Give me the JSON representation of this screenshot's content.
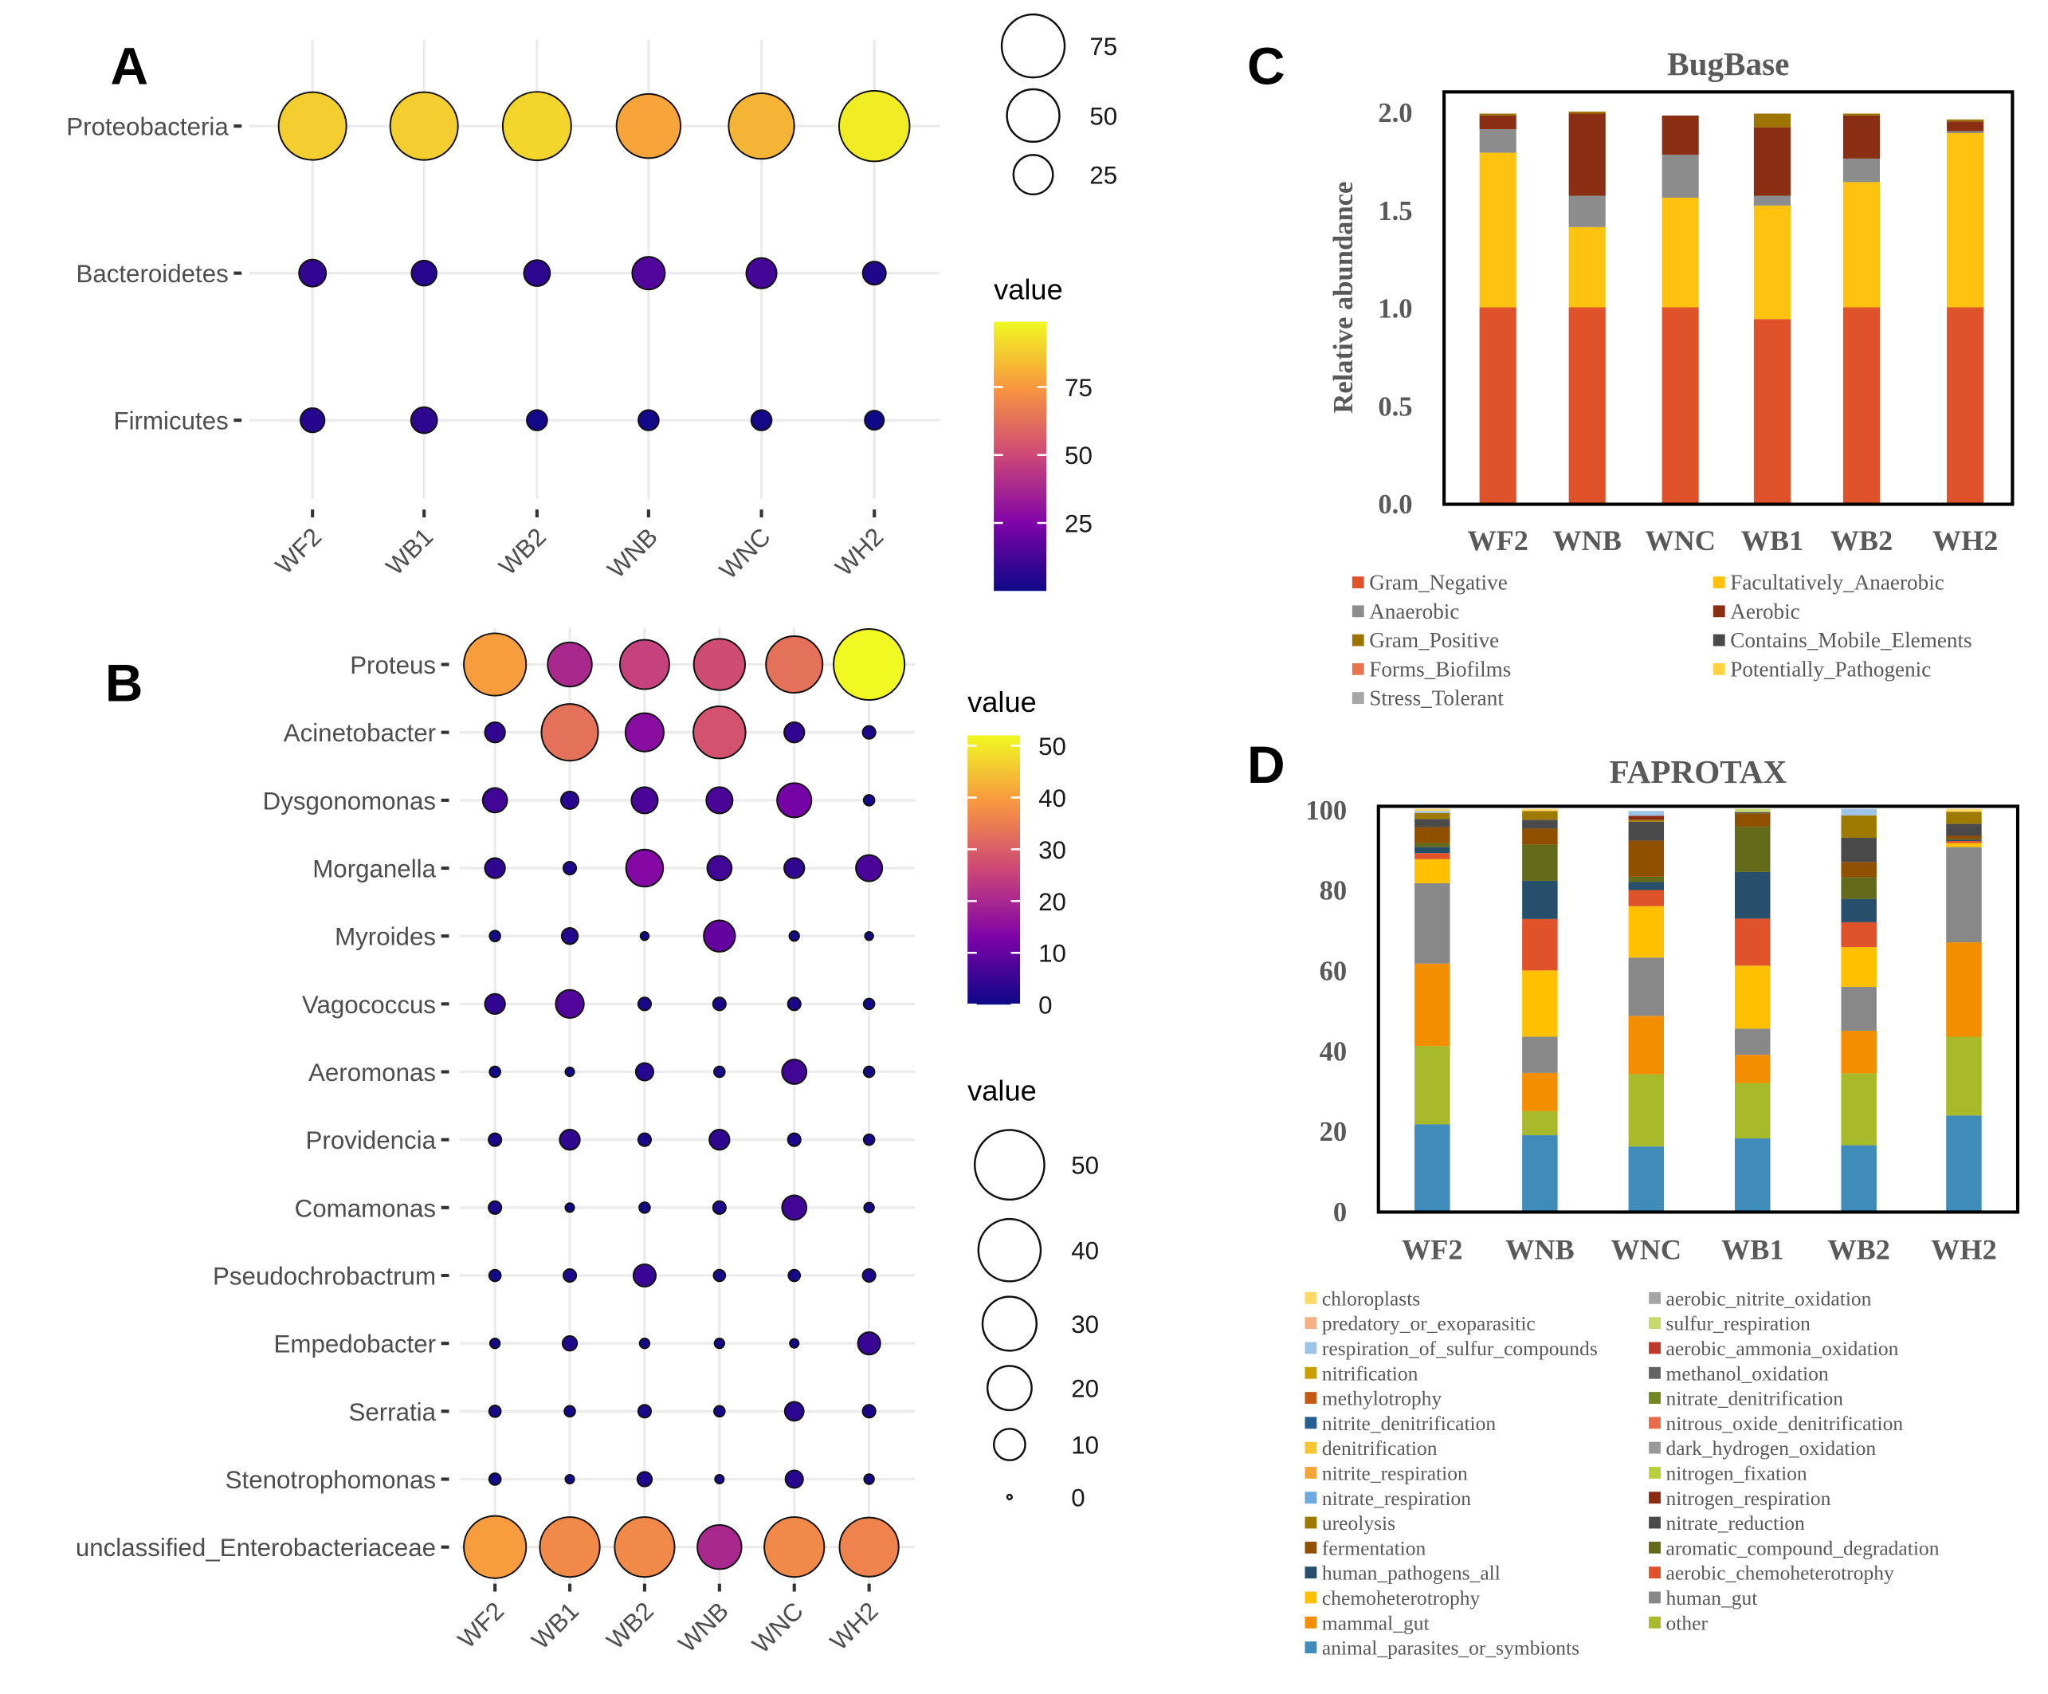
{
  "panel_letters": [
    "A",
    "B",
    "C",
    "D"
  ],
  "chart_data": [
    {
      "type": "scatter",
      "subtype": "bubble",
      "id": "A",
      "samples": [
        "WF2",
        "WB1",
        "WB2",
        "WNB",
        "WNC",
        "WH2"
      ],
      "taxa": [
        "Proteobacteria",
        "Bacteroidetes",
        "Firmicutes"
      ],
      "values": [
        [
          88,
          88,
          90,
          78,
          82,
          96
        ],
        [
          8,
          6,
          7,
          15,
          12,
          4
        ],
        [
          5,
          7,
          1.5,
          1.5,
          1.5,
          0.5
        ]
      ],
      "color_legend_title": "value",
      "color_ticks": [
        25,
        50,
        75
      ],
      "color_range": [
        0,
        99
      ],
      "size_legend_values": [
        75,
        50,
        25
      ],
      "grid": true
    },
    {
      "type": "scatter",
      "subtype": "bubble",
      "id": "B",
      "samples": [
        "WF2",
        "WB1",
        "WB2",
        "WNB",
        "WNC",
        "WH2"
      ],
      "taxa": [
        "Proteus",
        "Acinetobacter",
        "Dysgonomonas",
        "Morganella",
        "Myroides",
        "Vagococcus",
        "Aeromonas",
        "Providencia",
        "Comamonas",
        "Pseudochrobactrum",
        "Empedobacter",
        "Serratia",
        "Stenotrophomonas",
        "unclassified_Enterobacteriaceae"
      ],
      "values": [
        [
          40,
          20,
          25,
          27,
          33,
          52
        ],
        [
          4,
          33,
          15,
          28,
          4,
          1.5
        ],
        [
          6,
          3,
          7,
          7,
          12,
          1
        ],
        [
          4,
          1.5,
          14,
          6,
          4,
          7
        ],
        [
          1,
          2.5,
          0.5,
          10,
          0.8,
          0.5
        ],
        [
          4,
          8,
          1.5,
          1.5,
          1.5,
          1
        ],
        [
          1,
          0.6,
          3,
          1,
          6,
          1
        ],
        [
          1.5,
          4,
          1.5,
          4,
          1.5,
          1
        ],
        [
          1.5,
          0.6,
          1,
          1.5,
          6,
          0.8
        ],
        [
          1.2,
          1.5,
          5,
          1.2,
          1.2,
          1.5
        ],
        [
          0.8,
          2,
          0.8,
          0.8,
          0.6,
          5
        ],
        [
          1.2,
          1,
          1.5,
          1,
          3.5,
          1.5
        ],
        [
          1.2,
          0.6,
          2,
          0.6,
          3,
          0.8
        ],
        [
          40,
          37,
          37,
          20,
          37,
          36
        ]
      ],
      "color_legend_title": "value",
      "color_ticks": [
        0,
        10,
        20,
        30,
        40,
        50
      ],
      "color_range": [
        0,
        52
      ],
      "size_legend_title": "value",
      "size_legend_values": [
        50,
        40,
        30,
        20,
        10,
        0
      ],
      "grid": true
    },
    {
      "type": "bar",
      "subtype": "stacked",
      "id": "C",
      "title": "BugBase",
      "ylabel": "Relative abundance",
      "xlabel": "",
      "ylim": [
        0,
        2.0
      ],
      "yticks": [
        "0.0",
        "0.5",
        "1.0",
        "1.5",
        "2.0"
      ],
      "categories": [
        "WF2",
        "WNB",
        "WNC",
        "WB1",
        "WB2",
        "WH2"
      ],
      "legend": [
        {
          "name": "Gram_Negative",
          "color": "#e0522a"
        },
        {
          "name": "Facultatively_Anaerobic",
          "color": "#ffc20e"
        },
        {
          "name": "Anaerobic",
          "color": "#8c8c8c"
        },
        {
          "name": "Aerobic",
          "color": "#8b2f14"
        },
        {
          "name": "Gram_Positive",
          "color": "#9e7400"
        },
        {
          "name": "Contains_Mobile_Elements",
          "color": "#4a4a4a"
        },
        {
          "name": "Forms_Biofilms",
          "color": "#e9744f"
        },
        {
          "name": "Potentially_Pathogenic",
          "color": "#ffd23f"
        },
        {
          "name": "Stress_Tolerant",
          "color": "#a6a6a6"
        }
      ],
      "series": [
        {
          "name": "Gram_Negative",
          "values": [
            1.0,
            1.0,
            1.0,
            0.94,
            1.0,
            1.0
          ]
        },
        {
          "name": "Facultatively_Anaerobic",
          "values": [
            0.79,
            0.41,
            0.56,
            0.58,
            0.64,
            0.89
          ]
        },
        {
          "name": "Anaerobic",
          "values": [
            0.12,
            0.16,
            0.22,
            0.05,
            0.12,
            0.01
          ]
        },
        {
          "name": "Aerobic",
          "values": [
            0.07,
            0.42,
            0.2,
            0.35,
            0.22,
            0.05
          ]
        },
        {
          "name": "Gram_Positive",
          "values": [
            0.01,
            0.01,
            0.0,
            0.07,
            0.01,
            0.01
          ]
        }
      ]
    },
    {
      "type": "bar",
      "subtype": "stacked",
      "id": "D",
      "title": "FAPROTAX",
      "ylim": [
        0,
        100
      ],
      "yticks": [
        "0",
        "20",
        "40",
        "60",
        "80",
        "100"
      ],
      "categories": [
        "WF2",
        "WNB",
        "WNC",
        "WB1",
        "WB2",
        "WH2"
      ],
      "legend": [
        {
          "name": "chloroplasts",
          "color": "#ffd966"
        },
        {
          "name": "predatory_or_exoparasitic",
          "color": "#f4b183"
        },
        {
          "name": "respiration_of_sulfur_compounds",
          "color": "#9dc3e6"
        },
        {
          "name": "nitrification",
          "color": "#c9a000"
        },
        {
          "name": "methylotrophy",
          "color": "#c55a11"
        },
        {
          "name": "nitrite_denitrification",
          "color": "#255e91"
        },
        {
          "name": "denitrification",
          "color": "#f7c531"
        },
        {
          "name": "nitrite_respiration",
          "color": "#f4a53a"
        },
        {
          "name": "nitrate_respiration",
          "color": "#6fa8dc"
        },
        {
          "name": "ureolysis",
          "color": "#9e7b00"
        },
        {
          "name": "fermentation",
          "color": "#8f5000"
        },
        {
          "name": "human_pathogens_all",
          "color": "#264f6b"
        },
        {
          "name": "chemoheterotrophy",
          "color": "#ffc000"
        },
        {
          "name": "mammal_gut",
          "color": "#f28e00"
        },
        {
          "name": "animal_parasites_or_symbionts",
          "color": "#3f8bb9"
        },
        {
          "name": "aerobic_nitrite_oxidation",
          "color": "#a5a5a5"
        },
        {
          "name": "sulfur_respiration",
          "color": "#c6d96f"
        },
        {
          "name": "aerobic_ammonia_oxidation",
          "color": "#c0392b"
        },
        {
          "name": "methanol_oxidation",
          "color": "#636363"
        },
        {
          "name": "nitrate_denitrification",
          "color": "#70881f"
        },
        {
          "name": "nitrous_oxide_denitrification",
          "color": "#e96b4c"
        },
        {
          "name": "dark_hydrogen_oxidation",
          "color": "#999999"
        },
        {
          "name": "nitrogen_fixation",
          "color": "#b8cf3a"
        },
        {
          "name": "nitrogen_respiration",
          "color": "#8b2a10"
        },
        {
          "name": "nitrate_reduction",
          "color": "#4a4a4a"
        },
        {
          "name": "aromatic_compound_degradation",
          "color": "#636b1a"
        },
        {
          "name": "aerobic_chemoheterotrophy",
          "color": "#e0522a"
        },
        {
          "name": "human_gut",
          "color": "#888888"
        },
        {
          "name": "other",
          "color": "#a8b92a"
        }
      ],
      "series": [
        {
          "name": "animal_parasites_or_symbionts",
          "values": [
            21.5,
            18.8,
            16,
            18,
            16.3,
            23.7
          ]
        },
        {
          "name": "other",
          "values": [
            19.5,
            6,
            18,
            13.8,
            17.9,
            19.6
          ]
        },
        {
          "name": "mammal_gut",
          "values": [
            20.5,
            9.5,
            14.5,
            7,
            10.6,
            23.5
          ]
        },
        {
          "name": "human_gut",
          "values": [
            20,
            9,
            14.5,
            6.5,
            10.9,
            23.7
          ]
        },
        {
          "name": "chemoheterotrophy",
          "values": [
            6,
            16.5,
            12.8,
            15.7,
            9.9,
            1
          ]
        },
        {
          "name": "aerobic_chemoheterotrophy",
          "values": [
            1.5,
            12.8,
            4,
            11.7,
            6.2,
            0.5
          ]
        },
        {
          "name": "human_pathogens_all",
          "values": [
            1.5,
            9.5,
            2,
            11.6,
            5.8,
            0.3
          ]
        },
        {
          "name": "aromatic_compound_degradation",
          "values": [
            1,
            9,
            1.3,
            11.3,
            5.4,
            0.2
          ]
        },
        {
          "name": "fermentation",
          "values": [
            4,
            4,
            9,
            3.3,
            3.8,
            0.8
          ]
        },
        {
          "name": "nitrate_reduction",
          "values": [
            2,
            2.2,
            4.7,
            0.3,
            6,
            3
          ]
        },
        {
          "name": "ureolysis",
          "values": [
            1.5,
            2.2,
            0.5,
            0,
            5.6,
            3
          ]
        },
        {
          "name": "nitrogen_respiration",
          "values": [
            0,
            0,
            1,
            0,
            0,
            0
          ]
        },
        {
          "name": "respiration_of_sulfur_compounds",
          "values": [
            0.5,
            0,
            1.2,
            0,
            1.6,
            0
          ]
        },
        {
          "name": "sulfur_respiration",
          "values": [
            0,
            0,
            0,
            0.8,
            0,
            0
          ]
        },
        {
          "name": "chloroplasts",
          "values": [
            0.5,
            0.5,
            0,
            0,
            0,
            0.7
          ]
        }
      ]
    }
  ]
}
